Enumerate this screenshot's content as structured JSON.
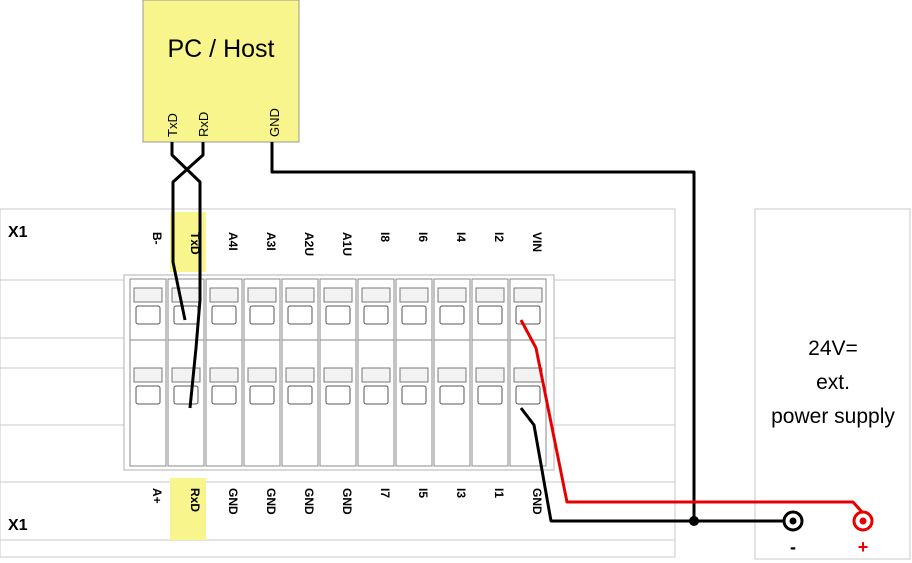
{
  "host": {
    "title": "PC / Host",
    "pins": [
      "TxD",
      "RxD",
      "GND"
    ]
  },
  "connector": {
    "label_top": "X1",
    "label_bottom": "X1",
    "top_terminals": [
      "B-",
      "TxD",
      "A4I",
      "A3I",
      "A2U",
      "A1U",
      "I8",
      "I6",
      "I4",
      "I2",
      "VIN"
    ],
    "bottom_terminals": [
      "A+",
      "RxD",
      "GND",
      "GND",
      "GND",
      "GND",
      "I7",
      "I5",
      "I3",
      "I1",
      "GND"
    ],
    "highlighted": [
      "TxD",
      "RxD"
    ]
  },
  "power_supply": {
    "line1": "24V=",
    "line2": "ext.",
    "line3": "power supply",
    "minus_label": "-",
    "plus_label": "+"
  },
  "colors": {
    "highlight": "#f7f58c",
    "wire_black": "#000000",
    "wire_red": "#e60000",
    "frame": "#c8c8c8"
  }
}
